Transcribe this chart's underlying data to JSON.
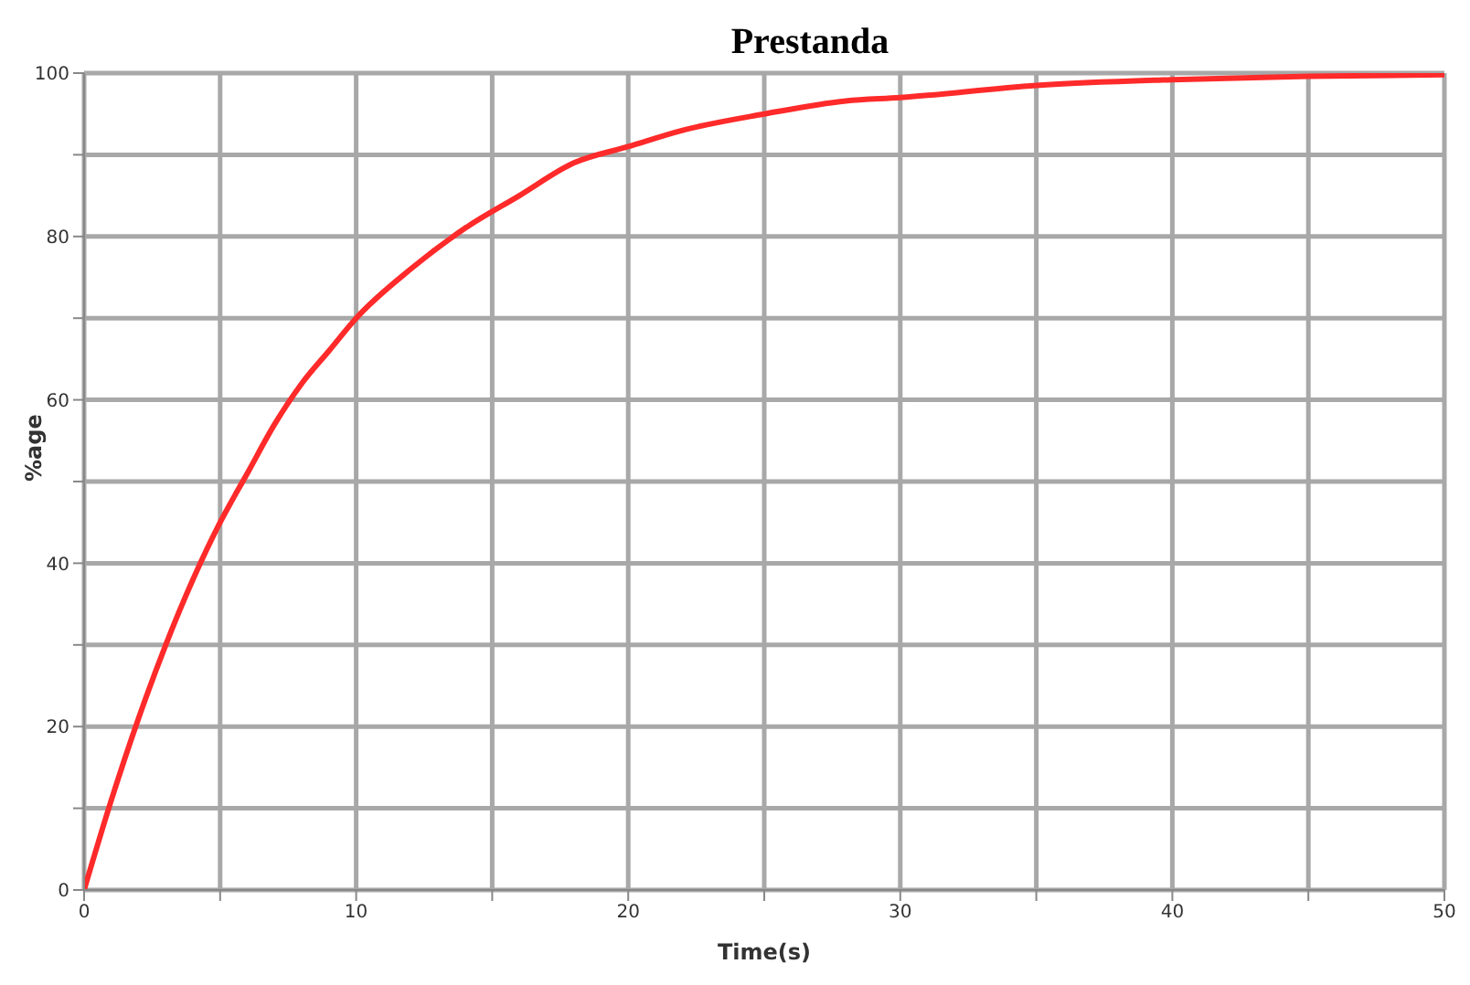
{
  "chart_data": {
    "type": "line",
    "title": "Prestanda",
    "xlabel": "Time(s)",
    "ylabel": "%age",
    "x": [
      0,
      1,
      2,
      3,
      4,
      5,
      6,
      7,
      8,
      9,
      10,
      12,
      14,
      16,
      18,
      20,
      22,
      25,
      28,
      30,
      35,
      40,
      45,
      50
    ],
    "series": [
      {
        "color": "#ff2a2a",
        "values": [
          0,
          11,
          21,
          30,
          38,
          45,
          51,
          57,
          62,
          66,
          70,
          76,
          81,
          85,
          89,
          91,
          93,
          95,
          96.6,
          97,
          98.5,
          99.2,
          99.6,
          99.8
        ]
      }
    ],
    "xlim": [
      0,
      50
    ],
    "xticks": [
      0,
      {
        "value": 5,
        "label": null
      },
      10,
      {
        "value": 15,
        "label": null
      },
      20,
      {
        "value": 25,
        "label": null
      },
      30,
      {
        "value": 35,
        "label": null
      },
      40,
      {
        "value": 45,
        "label": null
      },
      50
    ],
    "ylim": [
      0,
      100
    ],
    "yticks": [
      0,
      {
        "value": 10,
        "label": null
      },
      20,
      {
        "value": 30,
        "label": null
      },
      40,
      {
        "value": 50,
        "label": null
      },
      60,
      {
        "value": 70,
        "label": null
      },
      80,
      {
        "value": 90,
        "label": null
      },
      100
    ],
    "grid": true,
    "marker": "none",
    "line_style": "solid"
  }
}
